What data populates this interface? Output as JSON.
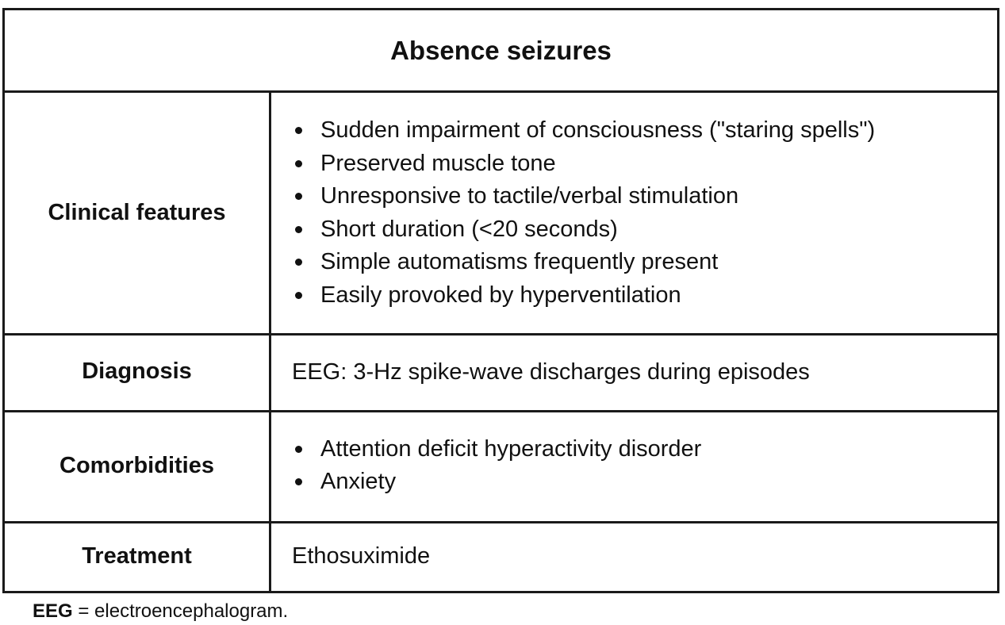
{
  "title": "Absence seizures",
  "rows": [
    {
      "label": "Clinical features",
      "bullets": [
        "Sudden impairment of consciousness (\"staring spells\")",
        "Preserved muscle tone",
        "Unresponsive to tactile/verbal stimulation",
        "Short duration (<20 seconds)",
        "Simple automatisms frequently present",
        "Easily provoked by hyperventilation"
      ]
    },
    {
      "label": "Diagnosis",
      "text": "EEG: 3-Hz spike-wave discharges during episodes"
    },
    {
      "label": "Comorbidities",
      "bullets": [
        "Attention deficit hyperactivity disorder",
        "Anxiety"
      ]
    },
    {
      "label": "Treatment",
      "text": "Ethosuximide"
    }
  ],
  "footnote": {
    "abbr": "EEG",
    "definition": " = electroencephalogram."
  }
}
